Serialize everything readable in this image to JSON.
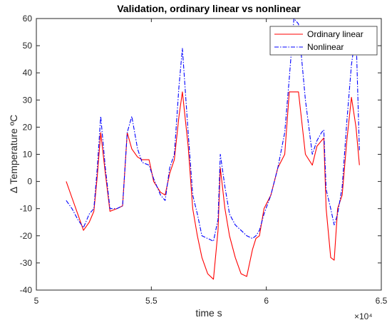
{
  "chart_data": {
    "type": "line",
    "title": "Validation, ordinary linear vs nonlinear",
    "xlabel": "time s",
    "ylabel": "Δ Temperature ºC",
    "x_exponent_label": "×10⁴",
    "xlim": [
      5,
      6.5
    ],
    "ylim": [
      -40,
      60
    ],
    "xticks": [
      5,
      5.5,
      6,
      6.5
    ],
    "xtick_labels": [
      "5",
      "5.5",
      "6",
      "6.5"
    ],
    "yticks": [
      -40,
      -30,
      -20,
      -10,
      0,
      10,
      20,
      30,
      40,
      50,
      60
    ],
    "ytick_labels": [
      "-40",
      "-30",
      "-20",
      "-10",
      "0",
      "10",
      "20",
      "30",
      "40",
      "50",
      "60"
    ],
    "legend_position": "top-right",
    "colors": {
      "ordinary": "#ff0000",
      "nonlinear": "#0000ff",
      "axis": "#262626",
      "background": "#ffffff"
    },
    "series": [
      {
        "name": "Ordinary linear",
        "color": "#ff0000",
        "style": "solid",
        "x": [
          5.13,
          5.155,
          5.18,
          5.205,
          5.23,
          5.25,
          5.265,
          5.28,
          5.3,
          5.32,
          5.35,
          5.375,
          5.395,
          5.415,
          5.44,
          5.46,
          5.49,
          5.51,
          5.54,
          5.56,
          5.58,
          5.6,
          5.62,
          5.635,
          5.66,
          5.68,
          5.7,
          5.72,
          5.745,
          5.77,
          5.79,
          5.8,
          5.82,
          5.84,
          5.865,
          5.89,
          5.915,
          5.94,
          5.955,
          5.97,
          5.99,
          6.02,
          6.05,
          6.08,
          6.1,
          6.12,
          6.14,
          6.17,
          6.2,
          6.22,
          6.24,
          6.25,
          6.26,
          6.28,
          6.295,
          6.31,
          6.33,
          6.35,
          6.37,
          6.39,
          6.405
        ],
        "y": [
          0,
          -6,
          -12,
          -18,
          -15,
          -11,
          2,
          18,
          3,
          -11,
          -10,
          -9,
          18,
          12,
          9,
          8,
          8,
          0,
          -4,
          -5,
          3,
          8,
          24,
          33,
          13,
          -10,
          -20,
          -28,
          -34,
          -36,
          -18,
          5,
          -10,
          -20,
          -28,
          -34,
          -35,
          -25,
          -21,
          -20,
          -10,
          -5,
          5,
          10,
          33,
          33,
          33,
          10,
          6,
          13,
          15,
          16,
          -10,
          -28,
          -29,
          -10,
          -5,
          15,
          31,
          20,
          6
        ]
      },
      {
        "name": "Nonlinear",
        "color": "#0000ff",
        "style": "dashdot",
        "x": [
          5.13,
          5.155,
          5.18,
          5.205,
          5.23,
          5.25,
          5.265,
          5.28,
          5.3,
          5.32,
          5.35,
          5.375,
          5.395,
          5.415,
          5.44,
          5.46,
          5.49,
          5.51,
          5.54,
          5.56,
          5.58,
          5.6,
          5.62,
          5.635,
          5.66,
          5.68,
          5.7,
          5.72,
          5.745,
          5.77,
          5.79,
          5.8,
          5.82,
          5.84,
          5.865,
          5.89,
          5.915,
          5.94,
          5.955,
          5.97,
          5.99,
          6.02,
          6.05,
          6.08,
          6.1,
          6.12,
          6.14,
          6.17,
          6.2,
          6.22,
          6.24,
          6.25,
          6.26,
          6.28,
          6.295,
          6.31,
          6.33,
          6.35,
          6.37,
          6.39,
          6.405
        ],
        "y": [
          -7,
          -10,
          -14,
          -17,
          -12,
          -10,
          5,
          24,
          5,
          -10,
          -10,
          -9,
          18,
          24,
          12,
          7,
          6,
          1,
          -5,
          -7,
          5,
          10,
          35,
          49,
          18,
          -5,
          -12,
          -20,
          -21,
          -22,
          -14,
          10,
          -2,
          -12,
          -16,
          -18,
          -20,
          -21,
          -20,
          -18,
          -12,
          -5,
          5,
          18,
          38,
          60,
          58,
          30,
          10,
          15,
          18,
          19,
          -3,
          -10,
          -16,
          -12,
          -2,
          22,
          43,
          55,
          11
        ]
      }
    ]
  }
}
